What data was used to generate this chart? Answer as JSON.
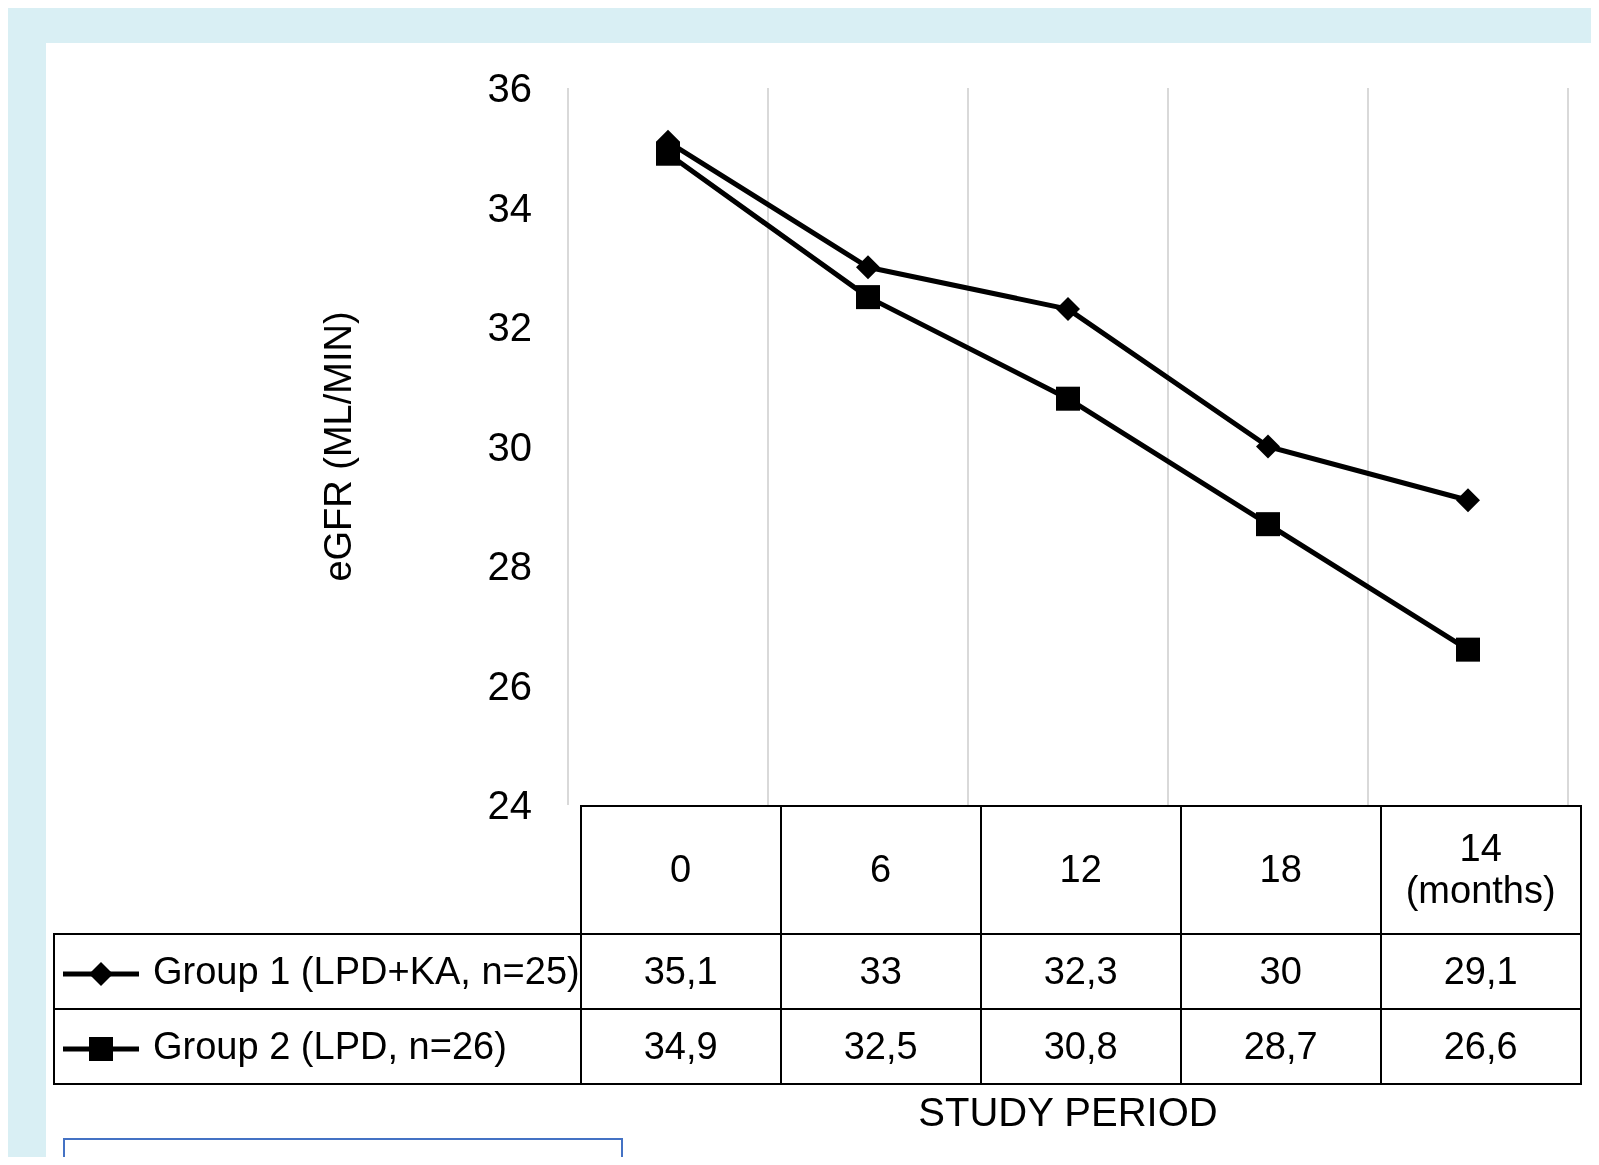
{
  "chart_data": {
    "type": "line",
    "xlabel": "STUDY PERIOD",
    "ylabel": "eGFR (ML/MIN)",
    "categories": [
      "0",
      "6",
      "12",
      "18",
      "14 (months)"
    ],
    "series": [
      {
        "name": "Group 1 (LPD+KA, n=25)",
        "color": "#000000",
        "marker": "diamond",
        "values": [
          35.1,
          33,
          32.3,
          30,
          29.1
        ],
        "value_labels": [
          "35,1",
          "33",
          "32,3",
          "30",
          "29,1"
        ]
      },
      {
        "name": "Group 2 (LPD, n=26)",
        "color": "#000000",
        "marker": "square",
        "values": [
          34.9,
          32.5,
          30.8,
          28.7,
          26.6
        ],
        "value_labels": [
          "34,9",
          "32,5",
          "30,8",
          "28,7",
          "26,6"
        ]
      }
    ],
    "ylim": [
      24,
      36
    ],
    "yticks": [
      24,
      26,
      28,
      30,
      32,
      34,
      36
    ],
    "grid": "x",
    "legend": "bottom",
    "line_style": "solid"
  }
}
